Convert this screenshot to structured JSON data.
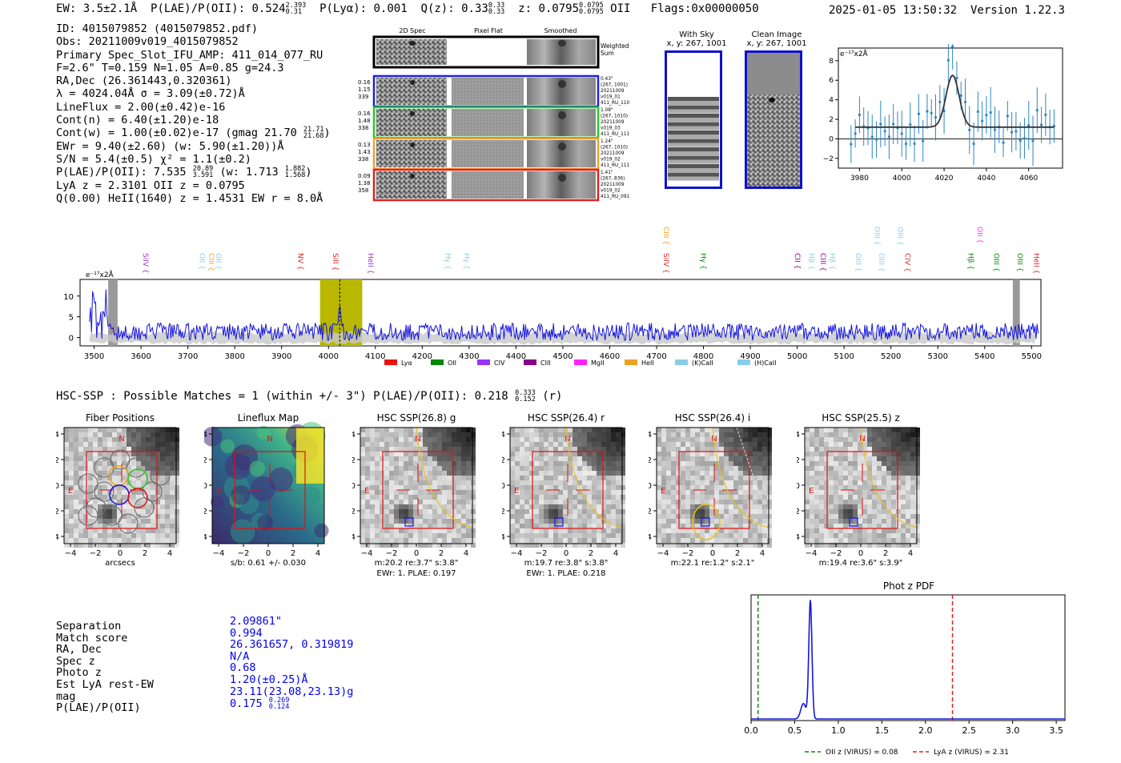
{
  "header": {
    "ew": "EW: 3.5±2.1Å",
    "plae_label": "P(LAE)/P(OII):",
    "plae_val": "0.524",
    "plae_hi": "2.393",
    "plae_lo": "0.31",
    "plya": "P(Lyα): 0.001",
    "qz_label": "Q(z): 0.33",
    "qz_hi": "0.33",
    "qz_lo": "0.33",
    "z_label": "z: 0.0795",
    "z_hi": "0.0795",
    "z_lo": "0.0795",
    "z_line": "OII",
    "flags": "Flags:0x00000050",
    "datetime": "2025-01-05 13:50:32",
    "version": "Version 1.22.3"
  },
  "info": {
    "id": "ID: 4015079852 (4015079852.pdf)",
    "obs": "Obs: 20211009v019_4015079852",
    "primary": "Primary Spec_Slot_IFU_AMP: 411_014_077_RU",
    "fstats": "F=2.6\"  T=0.159  N=1.05  A=0.85  g=24.3",
    "radec": "RA,Dec (26.361443,0.320361)",
    "lambda": "λ = 4024.04Å  σ = 3.09(±0.72)Å",
    "lineflux": "LineFlux = 2.00(±0.42)e-16",
    "contn": "Cont(n) = 6.40(±1.20)e-18",
    "contw": "Cont(w) = 1.00(±0.02)e-17 (gmag 21.70",
    "contw_hi": "21.71",
    "contw_lo": "21.68",
    "ewr": "EWr = 9.40(±2.60) (w: 5.90(±1.20))Å",
    "sn": "S/N = 5.4(±0.5)  χ² = 1.1(±0.2)",
    "plae": "P(LAE)/P(OII): 7.535",
    "plae_hi": "20.89",
    "plae_lo": "3.591",
    "plae_w": "(w: 1.713",
    "plae_w_hi": "1.882",
    "plae_w_lo": "1.568",
    "lya": "LyA z = 2.3101  OII z = 0.0795",
    "heii": "Q(0.00) HeII(1640) z = 1.4531  EW r = 8.0Å"
  },
  "spec2d": {
    "col_labels": [
      "2D Spec",
      "Pixel Flat",
      "Smoothed"
    ],
    "weighted_label": "Weighted\nSum",
    "rows": [
      {
        "left": [
          "0.16",
          "1.15",
          "339"
        ],
        "right": [
          "0.43\"",
          "(267, 1001)",
          "20211009",
          "v019_01",
          "411_RU_110"
        ],
        "color": "#1f1fe0"
      },
      {
        "left": [
          "0.16",
          "1.48",
          "338"
        ],
        "right": [
          "1.08\"",
          "(267, 1010)",
          "20211009",
          "v019_03",
          "411_RU_111"
        ],
        "color": "#22cc22"
      },
      {
        "left": [
          "0.13",
          "1.43",
          "338"
        ],
        "right": [
          "1.24\"",
          "(267, 1010)",
          "20211009",
          "v019_02",
          "411_RU_111"
        ],
        "color": "#f0a030"
      },
      {
        "left": [
          "0.09",
          "1.38",
          "358"
        ],
        "right": [
          "1.41\"",
          "(267, 836)",
          "20211009",
          "v019_02",
          "411_RU_091"
        ],
        "color": "#e02020"
      }
    ]
  },
  "cutouts": {
    "with_sky_title": "With Sky",
    "with_sky_coord": "x, y: 267, 1001",
    "clean_title": "Clean Image",
    "clean_coord": "x, y: 267, 1001"
  },
  "zoom_plot": {
    "unit": "e⁻¹⁷x2Å",
    "xticks": [
      "3980",
      "4000",
      "4020",
      "4040",
      "4060"
    ],
    "yticks": [
      "8",
      "6",
      "4",
      "2",
      "0",
      "−2"
    ]
  },
  "full_spectrum": {
    "unit": "e⁻¹⁷x2Å",
    "xticks": [
      "3500",
      "3600",
      "3700",
      "3800",
      "3900",
      "4000",
      "4100",
      "4200",
      "4300",
      "4400",
      "4500",
      "4600",
      "4700",
      "4800",
      "4900",
      "5000",
      "5100",
      "5200",
      "5300",
      "5400",
      "5500"
    ],
    "yticks": [
      "10",
      "5",
      "0"
    ],
    "line_labels_low": [
      {
        "t": "SiIV",
        "c": "#9933cc"
      },
      {
        "t": "OII",
        "c": "#87ceeb"
      },
      {
        "t": "CIII",
        "c": "#f0a020"
      },
      {
        "t": "OII",
        "c": "#87ceeb"
      },
      {
        "t": "NV",
        "c": "#dd2222"
      },
      {
        "t": "SiII",
        "c": "#dd2222"
      },
      {
        "t": "HeII",
        "c": "#9933cc"
      },
      {
        "t": "Hγ",
        "c": "#87ceeb"
      },
      {
        "t": "Hγ",
        "c": "#87ceeb"
      },
      {
        "t": "SiIV",
        "c": "#dd2222"
      },
      {
        "t": "Hγ",
        "c": "#008800"
      },
      {
        "t": "CII",
        "c": "#880088"
      },
      {
        "t": "Hβ",
        "c": "#87ceeb"
      },
      {
        "t": "CIII",
        "c": "#880088"
      },
      {
        "t": "Hβ",
        "c": "#87ceeb"
      },
      {
        "t": "OIII",
        "c": "#87ceeb"
      },
      {
        "t": "OIII",
        "c": "#87ceeb"
      },
      {
        "t": "CIV",
        "c": "#dd2222"
      },
      {
        "t": "Hβ",
        "c": "#008800"
      },
      {
        "t": "OIII",
        "c": "#008800"
      },
      {
        "t": "OIII",
        "c": "#008800"
      },
      {
        "t": "HeII",
        "c": "#dd2222"
      }
    ],
    "line_labels_high": [
      {
        "t": "CIII",
        "c": "#f0a020"
      },
      {
        "t": "OIII",
        "c": "#87ceeb"
      },
      {
        "t": "OIII",
        "c": "#87ceeb"
      },
      {
        "t": "OII",
        "c": "#ff33ff"
      }
    ],
    "legend": [
      {
        "t": "Lyα",
        "c": "#ee1111"
      },
      {
        "t": "OII",
        "c": "#008800"
      },
      {
        "t": "CIV",
        "c": "#9933ff"
      },
      {
        "t": "CIII",
        "c": "#880088"
      },
      {
        "t": "MgII",
        "c": "#ff22ff"
      },
      {
        "t": "HeII",
        "c": "#f0a020"
      },
      {
        "t": "(K)CaII",
        "c": "#87ceeb"
      },
      {
        "t": "(H)CaII",
        "c": "#87ceeb"
      }
    ]
  },
  "hsc_header": {
    "text": "HSC-SSP : Possible Matches = 1 (within +/- 3\")  P(LAE)/P(OII): 0.218",
    "hi": "0.333",
    "lo": "0.152",
    "band": "(r)"
  },
  "imaging": {
    "axis_ticks": [
      "−4",
      "−2",
      "0",
      "2",
      "4"
    ],
    "panels": [
      {
        "title": "Fiber Positions",
        "cap1": "arcsecs",
        "cap2": ""
      },
      {
        "title": "Lineflux Map",
        "cap1": "s/b: 0.61 +/- 0.030",
        "cap2": ""
      },
      {
        "title": "HSC SSP(26.8) g",
        "cap1": "m:20.2  re:3.7\"  s:3.8\"",
        "cap2": "EWr: 1. PLAE: 0.197"
      },
      {
        "title": "HSC SSP(26.4) r",
        "cap1": "m:19.7  re:3.8\"  s:3.8\"",
        "cap2": "EWr: 1. PLAE: 0.218"
      },
      {
        "title": "HSC SSP(26.4) i",
        "cap1": "m:22.1  re:1.2\"  s:2.1\"",
        "cap2": ""
      },
      {
        "title": "HSC SSP(25.5) z",
        "cap1": "m:19.4  re:3.6\"  s:3.9\"",
        "cap2": ""
      }
    ],
    "n_label": "N",
    "e_label": "E"
  },
  "match_table": {
    "labels": [
      "Separation",
      "Match score",
      "RA, Dec",
      "Spec z",
      "Photo z",
      "Est LyA rest-EW",
      "mag",
      "P(LAE)/P(OII)"
    ],
    "values": [
      "2.09861\"",
      "0.994",
      "26.361657, 0.319819",
      "N/A",
      "0.68",
      "1.20(±0.25)Å",
      "23.11(23.08,23.13)g",
      "0.175"
    ],
    "plae_hi": "0.269",
    "plae_lo": "0.124"
  },
  "photz": {
    "title": "Phot z PDF",
    "xticks": [
      "0.0",
      "0.5",
      "1.0",
      "1.5",
      "2.0",
      "2.5",
      "3.0",
      "3.5"
    ],
    "oii_z": 0.08,
    "lya_z": 2.31,
    "peak_z": 0.68,
    "legend_oii": "OII z (VIRUS) = 0.08",
    "legend_lya": "LyA z (VIRUS) = 2.31"
  }
}
